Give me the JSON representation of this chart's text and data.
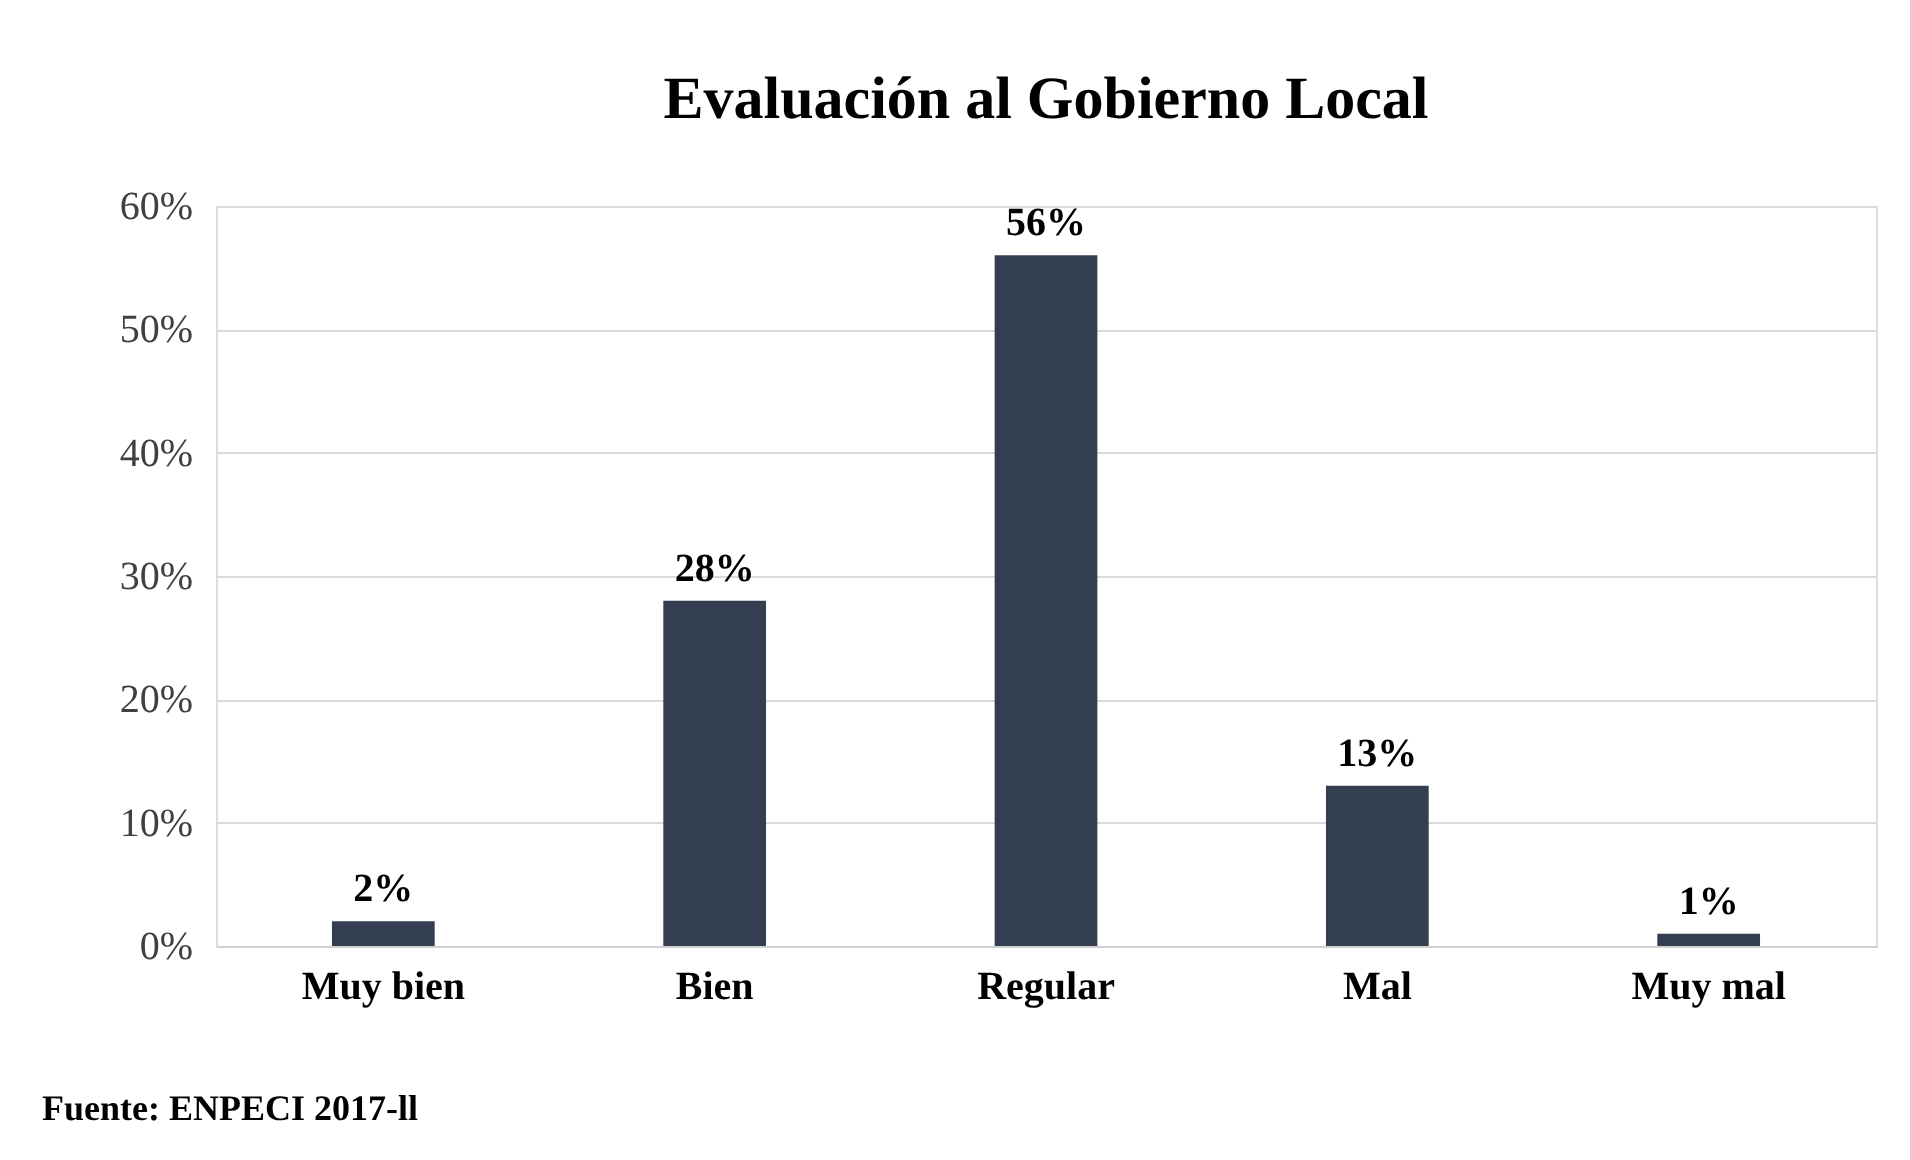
{
  "chart_data": {
    "type": "bar",
    "title": "Evaluación al Gobierno Local",
    "categories": [
      "Muy bien",
      "Bien",
      "Regular",
      "Mal",
      "Muy mal"
    ],
    "values": [
      2,
      28,
      56,
      13,
      1
    ],
    "value_labels": [
      "2%",
      "28%",
      "56%",
      "13%",
      "1%"
    ],
    "color": "#333f50",
    "ylim": [
      0,
      60
    ],
    "yticks": [
      {
        "value": 0,
        "label": "0%"
      },
      {
        "value": 10,
        "label": "10%"
      },
      {
        "value": 20,
        "label": "20%"
      },
      {
        "value": 30,
        "label": "30%"
      },
      {
        "value": 40,
        "label": "40%"
      },
      {
        "value": 50,
        "label": "50%"
      },
      {
        "value": 60,
        "label": "60%"
      }
    ],
    "grid": "y",
    "annotations": [
      "Fuente: ENPECI 2017-ll"
    ]
  }
}
